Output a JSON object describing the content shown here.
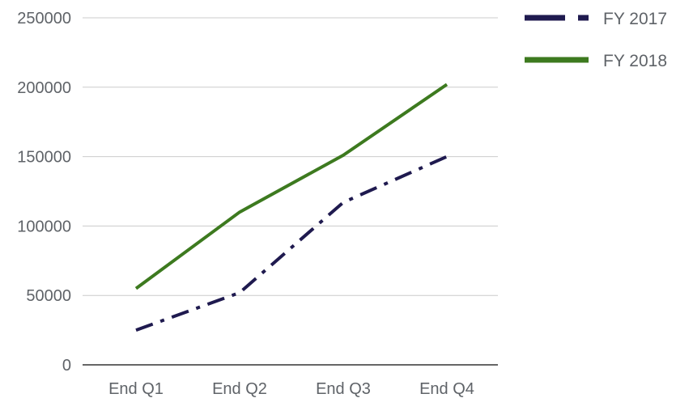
{
  "chart_data": {
    "type": "line",
    "title": "",
    "xlabel": "",
    "ylabel": "",
    "categories": [
      "End Q1",
      "End Q2",
      "End Q3",
      "End Q4"
    ],
    "y_ticks": [
      "0",
      "50000",
      "100000",
      "150000",
      "200000",
      "250000"
    ],
    "ylim": [
      0,
      250000
    ],
    "grid": true,
    "legend_position": "top-right",
    "series": [
      {
        "name": "FY 2017",
        "values": [
          25000,
          52000,
          117000,
          150000
        ],
        "color": "#1f1a4f",
        "line_style": "dash-dot"
      },
      {
        "name": "FY 2018",
        "values": [
          55000,
          110000,
          151000,
          202000
        ],
        "color": "#3d7a1f",
        "line_style": "solid"
      }
    ]
  }
}
